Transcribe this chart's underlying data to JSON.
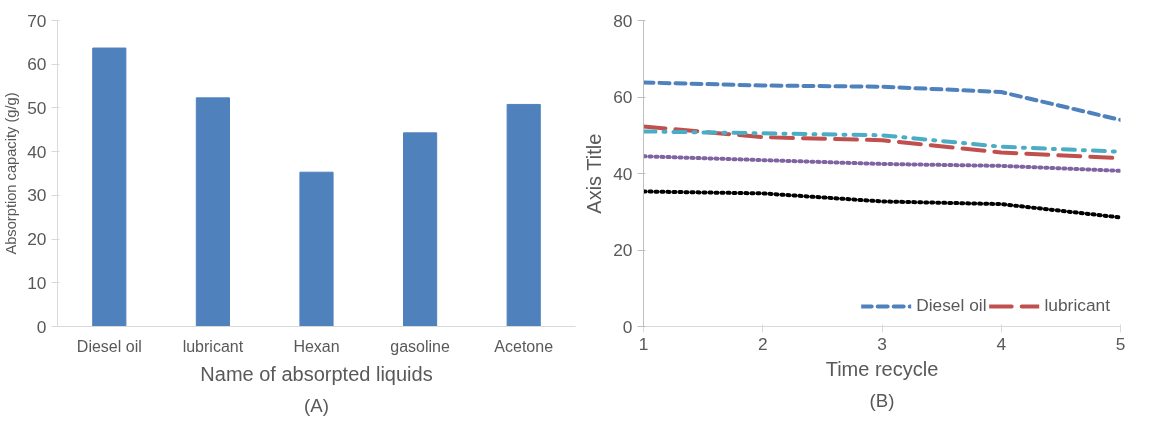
{
  "chart_data": [
    {
      "type": "bar",
      "xlabel": "Name of absorpted liquids",
      "ylabel": "Absorption capacity (g/g)",
      "annotations": [
        "(A)"
      ],
      "categories": [
        "Diesel oil",
        "lubricant",
        "Hexan",
        "gasoline",
        "Acetone"
      ],
      "values": [
        63.7,
        52.3,
        35.3,
        44.3,
        50.8
      ],
      "color": "#4f81bd",
      "ylim": [
        0,
        70
      ],
      "yticks": [
        0,
        10,
        20,
        30,
        40,
        50,
        60,
        70
      ],
      "grid": false
    },
    {
      "type": "line",
      "xlabel": "Time recycle",
      "ylabel": "Axis Title",
      "annotations": [
        "(B)"
      ],
      "x": [
        1,
        2,
        3,
        4,
        5
      ],
      "series": [
        {
          "name": "Diesel oil",
          "color": "#4f81bd",
          "line_style": "dashed",
          "values": [
            63.8,
            63,
            62.7,
            61.3,
            54
          ]
        },
        {
          "name": "lubricant",
          "color": "#c0504d",
          "line_style": "dashed",
          "values": [
            52.3,
            49.5,
            48.7,
            45.5,
            44
          ]
        },
        {
          "color": "#4bacc6",
          "line_style": "dashed",
          "values": [
            51,
            50.5,
            50,
            47,
            45.7
          ]
        },
        {
          "color": "#8064a2",
          "line_style": "dotted",
          "values": [
            44.5,
            43.5,
            42.5,
            42,
            40.7
          ]
        },
        {
          "color": "#000000",
          "line_style": "dotted",
          "values": [
            35.3,
            34.8,
            32.7,
            32,
            28.5
          ]
        }
      ],
      "xlim": [
        1,
        5
      ],
      "xticks": [
        1,
        2,
        3,
        4,
        5
      ],
      "ylim": [
        0,
        80
      ],
      "yticks": [
        0,
        20,
        40,
        60,
        80
      ],
      "grid": false,
      "legend": "bottom right",
      "marker": "none"
    }
  ]
}
